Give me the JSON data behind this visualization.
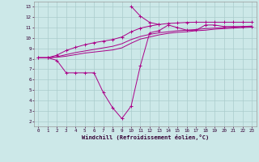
{
  "xlabel": "Windchill (Refroidissement éolien,°C)",
  "bg_color": "#cce8e8",
  "grid_color": "#aacccc",
  "line_color": "#aa0088",
  "xlim": [
    -0.5,
    23.5
  ],
  "ylim": [
    1.5,
    13.5
  ],
  "yticks": [
    2,
    3,
    4,
    5,
    6,
    7,
    8,
    9,
    10,
    11,
    12,
    13
  ],
  "xticks": [
    0,
    1,
    2,
    3,
    4,
    5,
    6,
    7,
    8,
    9,
    10,
    11,
    12,
    13,
    14,
    15,
    16,
    17,
    18,
    19,
    20,
    21,
    22,
    23
  ],
  "line1_x": [
    0,
    1,
    2,
    3,
    4,
    5,
    6,
    7,
    8,
    9,
    10,
    11,
    12,
    13,
    14,
    15,
    16,
    17,
    18,
    19,
    20,
    21,
    22,
    23
  ],
  "line1_y": [
    8.1,
    8.1,
    7.85,
    6.65,
    6.65,
    6.65,
    6.65,
    4.75,
    3.3,
    2.25,
    3.45,
    7.35,
    10.5,
    10.7,
    11.25,
    11.0,
    10.75,
    10.75,
    11.25,
    11.25,
    11.1,
    11.1,
    11.1,
    11.1
  ],
  "line2_x": [
    0,
    1,
    2,
    3,
    4,
    5,
    6,
    7,
    8,
    9,
    10,
    11,
    12,
    13,
    14,
    15,
    16,
    17,
    18,
    19,
    20,
    21,
    22,
    23
  ],
  "line2_y": [
    8.1,
    8.1,
    8.15,
    8.25,
    8.4,
    8.55,
    8.65,
    8.75,
    8.85,
    9.05,
    9.5,
    9.9,
    10.1,
    10.3,
    10.45,
    10.55,
    10.6,
    10.7,
    10.75,
    10.85,
    10.9,
    10.95,
    11.0,
    11.05
  ],
  "line3_x": [
    0,
    1,
    2,
    3,
    4,
    5,
    6,
    7,
    8,
    9,
    10,
    11,
    12,
    13,
    14,
    15,
    16,
    17,
    18,
    19,
    20,
    21,
    22,
    23
  ],
  "line3_y": [
    8.1,
    8.1,
    8.2,
    8.4,
    8.6,
    8.75,
    8.9,
    9.05,
    9.2,
    9.45,
    9.85,
    10.15,
    10.35,
    10.5,
    10.6,
    10.7,
    10.75,
    10.82,
    10.9,
    10.95,
    11.0,
    11.05,
    11.1,
    11.15
  ],
  "line4_x": [
    0,
    1,
    2,
    3,
    4,
    5,
    6,
    7,
    8,
    9,
    10,
    11,
    12,
    13,
    14,
    15,
    16,
    17,
    18,
    19,
    20,
    21,
    22,
    23
  ],
  "line4_y": [
    8.1,
    8.1,
    8.35,
    8.8,
    9.1,
    9.35,
    9.55,
    9.7,
    9.85,
    10.1,
    10.6,
    10.95,
    11.15,
    11.3,
    11.4,
    11.45,
    11.5,
    11.52,
    11.52,
    11.52,
    11.52,
    11.52,
    11.52,
    11.52
  ],
  "line5_x": [
    10,
    11,
    12,
    13
  ],
  "line5_y": [
    13.05,
    12.1,
    11.5,
    11.3
  ]
}
